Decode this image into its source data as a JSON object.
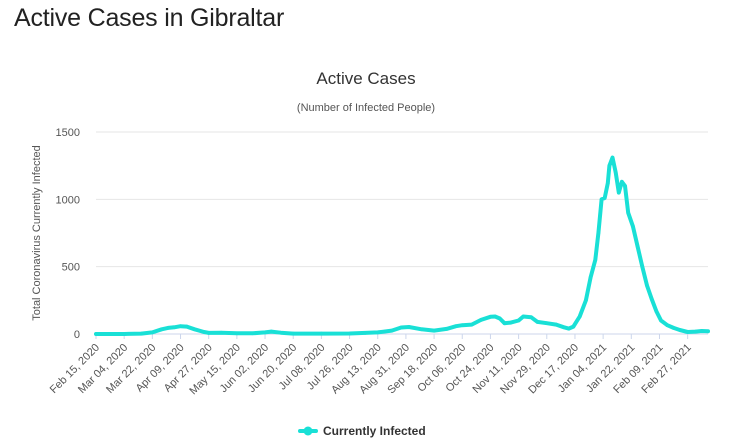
{
  "page": {
    "heading": "Active Cases in Gibraltar"
  },
  "colors": {
    "series": "#19e0d6",
    "grid": "#e6e6e6",
    "axis": "#ccd6eb"
  },
  "chart_data": {
    "type": "line",
    "title": "Active Cases",
    "subtitle": "(Number of Infected People)",
    "ylabel": "Total Coronavirus Currently Infected",
    "xlabel": "",
    "ylim": [
      0,
      1500
    ],
    "yticks": [
      0,
      500,
      1000,
      1500
    ],
    "xlim": [
      "2020-02-15",
      "2021-03-12"
    ],
    "xtick_labels": [
      "Feb 15, 2020",
      "Mar 04, 2020",
      "Mar 22, 2020",
      "Apr 09, 2020",
      "Apr 27, 2020",
      "May 15, 2020",
      "Jun 02, 2020",
      "Jun 20, 2020",
      "Jul 08, 2020",
      "Jul 26, 2020",
      "Aug 13, 2020",
      "Aug 31, 2020",
      "Sep 18, 2020",
      "Oct 06, 2020",
      "Oct 24, 2020",
      "Nov 11, 2020",
      "Nov 29, 2020",
      "Dec 17, 2020",
      "Jan 04, 2021",
      "Jan 22, 2021",
      "Feb 09, 2021",
      "Feb 27, 2021"
    ],
    "grid": true,
    "legend_position": "bottom-center",
    "series": [
      {
        "name": "Currently Infected",
        "points": [
          [
            "2020-02-15",
            0
          ],
          [
            "2020-03-04",
            0
          ],
          [
            "2020-03-15",
            3
          ],
          [
            "2020-03-22",
            12
          ],
          [
            "2020-03-28",
            35
          ],
          [
            "2020-04-01",
            45
          ],
          [
            "2020-04-05",
            50
          ],
          [
            "2020-04-09",
            58
          ],
          [
            "2020-04-13",
            55
          ],
          [
            "2020-04-18",
            35
          ],
          [
            "2020-04-24",
            15
          ],
          [
            "2020-04-27",
            8
          ],
          [
            "2020-05-05",
            10
          ],
          [
            "2020-05-15",
            5
          ],
          [
            "2020-05-25",
            5
          ],
          [
            "2020-06-02",
            12
          ],
          [
            "2020-06-06",
            18
          ],
          [
            "2020-06-12",
            10
          ],
          [
            "2020-06-20",
            3
          ],
          [
            "2020-07-08",
            3
          ],
          [
            "2020-07-26",
            4
          ],
          [
            "2020-08-05",
            8
          ],
          [
            "2020-08-13",
            12
          ],
          [
            "2020-08-22",
            25
          ],
          [
            "2020-08-28",
            48
          ],
          [
            "2020-09-02",
            52
          ],
          [
            "2020-09-10",
            35
          ],
          [
            "2020-09-18",
            25
          ],
          [
            "2020-09-26",
            38
          ],
          [
            "2020-10-02",
            58
          ],
          [
            "2020-10-06",
            65
          ],
          [
            "2020-10-12",
            70
          ],
          [
            "2020-10-18",
            105
          ],
          [
            "2020-10-24",
            128
          ],
          [
            "2020-10-27",
            130
          ],
          [
            "2020-10-30",
            115
          ],
          [
            "2020-11-02",
            80
          ],
          [
            "2020-11-06",
            85
          ],
          [
            "2020-11-11",
            100
          ],
          [
            "2020-11-14",
            130
          ],
          [
            "2020-11-19",
            125
          ],
          [
            "2020-11-23",
            90
          ],
          [
            "2020-11-29",
            80
          ],
          [
            "2020-12-05",
            70
          ],
          [
            "2020-12-10",
            50
          ],
          [
            "2020-12-13",
            40
          ],
          [
            "2020-12-16",
            55
          ],
          [
            "2020-12-20",
            130
          ],
          [
            "2020-12-24",
            250
          ],
          [
            "2020-12-27",
            420
          ],
          [
            "2020-12-30",
            550
          ],
          [
            "2021-01-01",
            750
          ],
          [
            "2021-01-03",
            1000
          ],
          [
            "2021-01-05",
            1010
          ],
          [
            "2021-01-07",
            1120
          ],
          [
            "2021-01-08",
            1250
          ],
          [
            "2021-01-10",
            1310
          ],
          [
            "2021-01-12",
            1200
          ],
          [
            "2021-01-14",
            1050
          ],
          [
            "2021-01-16",
            1130
          ],
          [
            "2021-01-18",
            1100
          ],
          [
            "2021-01-20",
            900
          ],
          [
            "2021-01-23",
            800
          ],
          [
            "2021-01-26",
            650
          ],
          [
            "2021-01-29",
            500
          ],
          [
            "2021-02-01",
            360
          ],
          [
            "2021-02-04",
            260
          ],
          [
            "2021-02-07",
            170
          ],
          [
            "2021-02-10",
            100
          ],
          [
            "2021-02-14",
            65
          ],
          [
            "2021-02-18",
            45
          ],
          [
            "2021-02-22",
            30
          ],
          [
            "2021-02-27",
            15
          ],
          [
            "2021-03-04",
            18
          ],
          [
            "2021-03-08",
            22
          ],
          [
            "2021-03-12",
            20
          ]
        ]
      }
    ]
  }
}
